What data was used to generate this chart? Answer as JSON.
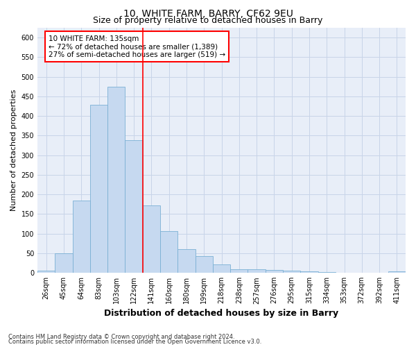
{
  "title1": "10, WHITE FARM, BARRY, CF62 9EU",
  "title2": "Size of property relative to detached houses in Barry",
  "xlabel": "Distribution of detached houses by size in Barry",
  "ylabel": "Number of detached properties",
  "bar_labels": [
    "26sqm",
    "45sqm",
    "64sqm",
    "83sqm",
    "103sqm",
    "122sqm",
    "141sqm",
    "160sqm",
    "180sqm",
    "199sqm",
    "218sqm",
    "238sqm",
    "257sqm",
    "276sqm",
    "295sqm",
    "315sqm",
    "334sqm",
    "353sqm",
    "372sqm",
    "392sqm",
    "411sqm"
  ],
  "bar_values": [
    5,
    50,
    185,
    428,
    475,
    338,
    172,
    107,
    60,
    43,
    22,
    10,
    10,
    7,
    5,
    4,
    2,
    1,
    1,
    0,
    4
  ],
  "bar_color": "#c6d9f0",
  "bar_edge_color": "#7ab0d4",
  "vline_x": 6,
  "vline_color": "red",
  "annotation_text": "10 WHITE FARM: 135sqm\n← 72% of detached houses are smaller (1,389)\n27% of semi-detached houses are larger (519) →",
  "annotation_box_color": "white",
  "annotation_box_edge_color": "red",
  "ylim": [
    0,
    625
  ],
  "yticks": [
    0,
    50,
    100,
    150,
    200,
    250,
    300,
    350,
    400,
    450,
    500,
    550,
    600
  ],
  "grid_color": "#c8d4e8",
  "background_color": "#e8eef8",
  "footer1": "Contains HM Land Registry data © Crown copyright and database right 2024.",
  "footer2": "Contains public sector information licensed under the Open Government Licence v3.0.",
  "title1_fontsize": 10,
  "title2_fontsize": 9,
  "xlabel_fontsize": 9,
  "ylabel_fontsize": 8,
  "tick_fontsize": 7,
  "annotation_fontsize": 7.5,
  "footer_fontsize": 6
}
